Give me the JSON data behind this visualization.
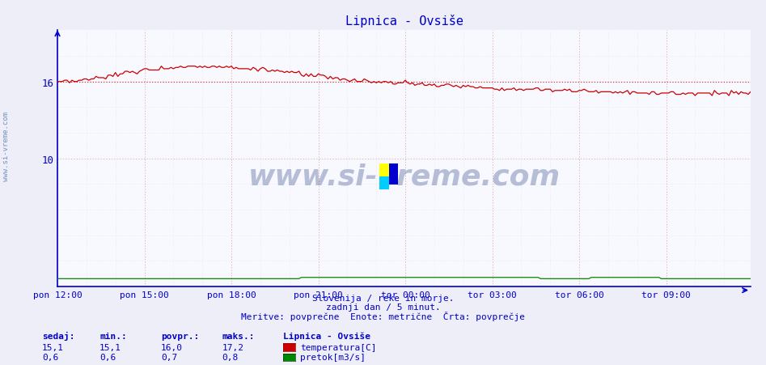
{
  "title": "Lipnica - Ovsiše",
  "background_color": "#eeeef8",
  "plot_bg_color": "#f8f8ff",
  "n_points": 288,
  "x_tick_labels": [
    "pon 12:00",
    "pon 15:00",
    "pon 18:00",
    "pon 21:00",
    "tor 00:00",
    "tor 03:00",
    "tor 06:00",
    "tor 09:00"
  ],
  "x_tick_positions": [
    0,
    36,
    72,
    108,
    144,
    180,
    216,
    252
  ],
  "ylabel_temp": "temperatura[C]",
  "ylabel_flow": "pretok[m3/s]",
  "temp_color": "#cc0000",
  "flow_color": "#008800",
  "avg_line_color": "#cc0000",
  "grid_color_major": "#dd8888",
  "grid_color_minor": "#eecccc",
  "axis_color": "#0000cc",
  "text_color": "#0000cc",
  "watermark": "www.si-vreme.com",
  "subtitle1": "Slovenija / reke in morje.",
  "subtitle2": "zadnji dan / 5 minut.",
  "subtitle3": "Meritve: povprečne  Enote: metrične  Črta: povprečje",
  "legend_title": "Lipnica - Ovsiše",
  "sedaj_label": "sedaj:",
  "min_label": "min.:",
  "povpr_label": "povpr.:",
  "maks_label": "maks.:",
  "temp_sedaj": "15,1",
  "temp_min": "15,1",
  "temp_povpr": "16,0",
  "temp_maks": "17,2",
  "flow_sedaj": "0,6",
  "flow_min": "0,6",
  "flow_povpr": "0,7",
  "flow_maks": "0,8",
  "y_avg": 16.0,
  "ylim_min": 0,
  "ylim_max": 20,
  "y_ticks": [
    10,
    16
  ]
}
